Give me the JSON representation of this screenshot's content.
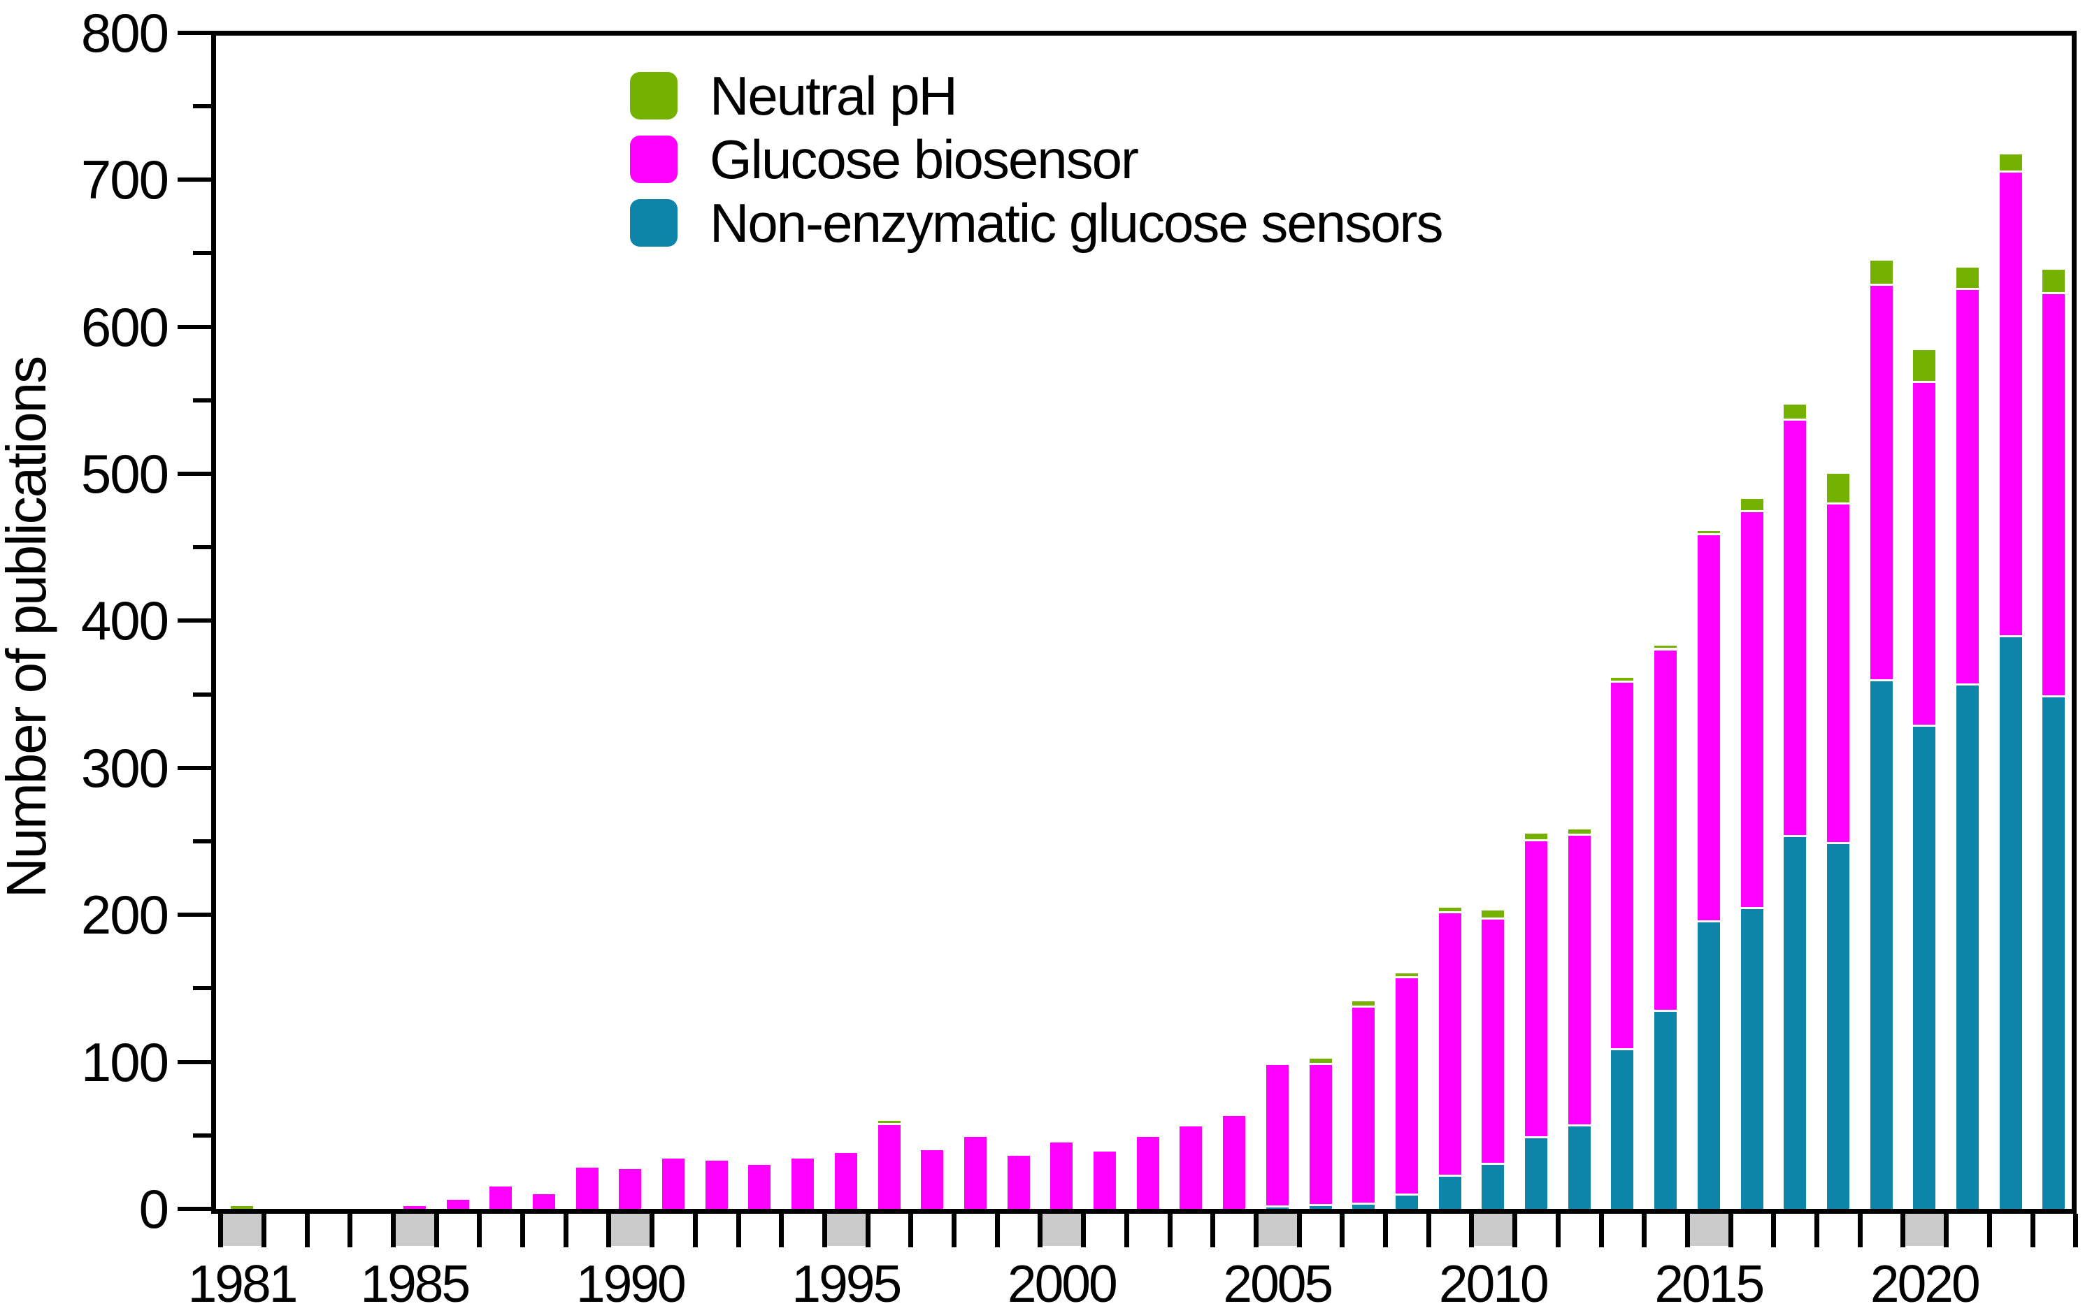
{
  "figure_title": "",
  "y_axis": {
    "label": "Number of publications",
    "min": 0,
    "max": 800,
    "major_step": 100,
    "minor_step": 50,
    "tick_labels": [
      "0",
      "100",
      "200",
      "300",
      "400",
      "500",
      "600",
      "700",
      "800"
    ]
  },
  "x_axis": {
    "start_year": 1981,
    "end_year": 2023,
    "labeled_years": [
      "1981",
      "1985",
      "1990",
      "1995",
      "2000",
      "2005",
      "2010",
      "2015",
      "2020"
    ],
    "highlight_box_color": "#CBCBCB"
  },
  "legend": {
    "items": [
      {
        "label": "Neutral pH",
        "color": "#74B100"
      },
      {
        "label": "Glucose biosensor",
        "color": "#FF00FF"
      },
      {
        "label": "Non-enzymatic glucose sensors",
        "color": "#0C85A9"
      }
    ]
  },
  "chart_data": {
    "type": "bar",
    "stacked": true,
    "title": "",
    "xlabel": "",
    "ylabel": "Number of publications",
    "ylim": [
      0,
      800
    ],
    "grid": false,
    "legend_position": "upper-left-inside",
    "categories": [
      1981,
      1982,
      1983,
      1984,
      1985,
      1986,
      1987,
      1988,
      1989,
      1990,
      1991,
      1992,
      1993,
      1994,
      1995,
      1996,
      1997,
      1998,
      1999,
      2000,
      2001,
      2002,
      2003,
      2004,
      2005,
      2006,
      2007,
      2008,
      2009,
      2010,
      2011,
      2012,
      2013,
      2014,
      2015,
      2016,
      2017,
      2018,
      2019,
      2020,
      2021,
      2022,
      2023
    ],
    "stack_order_bottom_to_top": [
      "Non-enzymatic glucose sensors",
      "Glucose biosensor",
      "Neutral pH"
    ],
    "series": [
      {
        "name": "Non-enzymatic glucose sensors",
        "color": "#0C85A9",
        "values": [
          0,
          0,
          0,
          0,
          0,
          0,
          0,
          0,
          0,
          0,
          0,
          0,
          0,
          0,
          0,
          0,
          0,
          0,
          0,
          0,
          0,
          0,
          0,
          0,
          1,
          2,
          3,
          9,
          22,
          30,
          48,
          56,
          108,
          134,
          195,
          204,
          253,
          248,
          359,
          328,
          356,
          389,
          348
        ]
      },
      {
        "name": "Glucose biosensor",
        "color": "#FF00FF",
        "values": [
          0,
          0,
          0,
          0,
          2,
          6,
          15,
          10,
          28,
          27,
          34,
          33,
          30,
          34,
          38,
          57,
          40,
          49,
          36,
          45,
          39,
          49,
          56,
          63,
          97,
          96,
          134,
          148,
          179,
          167,
          202,
          198,
          250,
          246,
          263,
          270,
          283,
          231,
          269,
          234,
          269,
          316,
          274
        ]
      },
      {
        "name": "Neutral pH",
        "color": "#74B100",
        "values": [
          2,
          0,
          0,
          0,
          0,
          0,
          0,
          0,
          0,
          0,
          0,
          0,
          0,
          0,
          0,
          3,
          0,
          0,
          0,
          0,
          0,
          0,
          0,
          0,
          0,
          4,
          4,
          3,
          4,
          6,
          5,
          4,
          3,
          3,
          3,
          9,
          11,
          21,
          17,
          22,
          15,
          12,
          17
        ]
      }
    ]
  }
}
